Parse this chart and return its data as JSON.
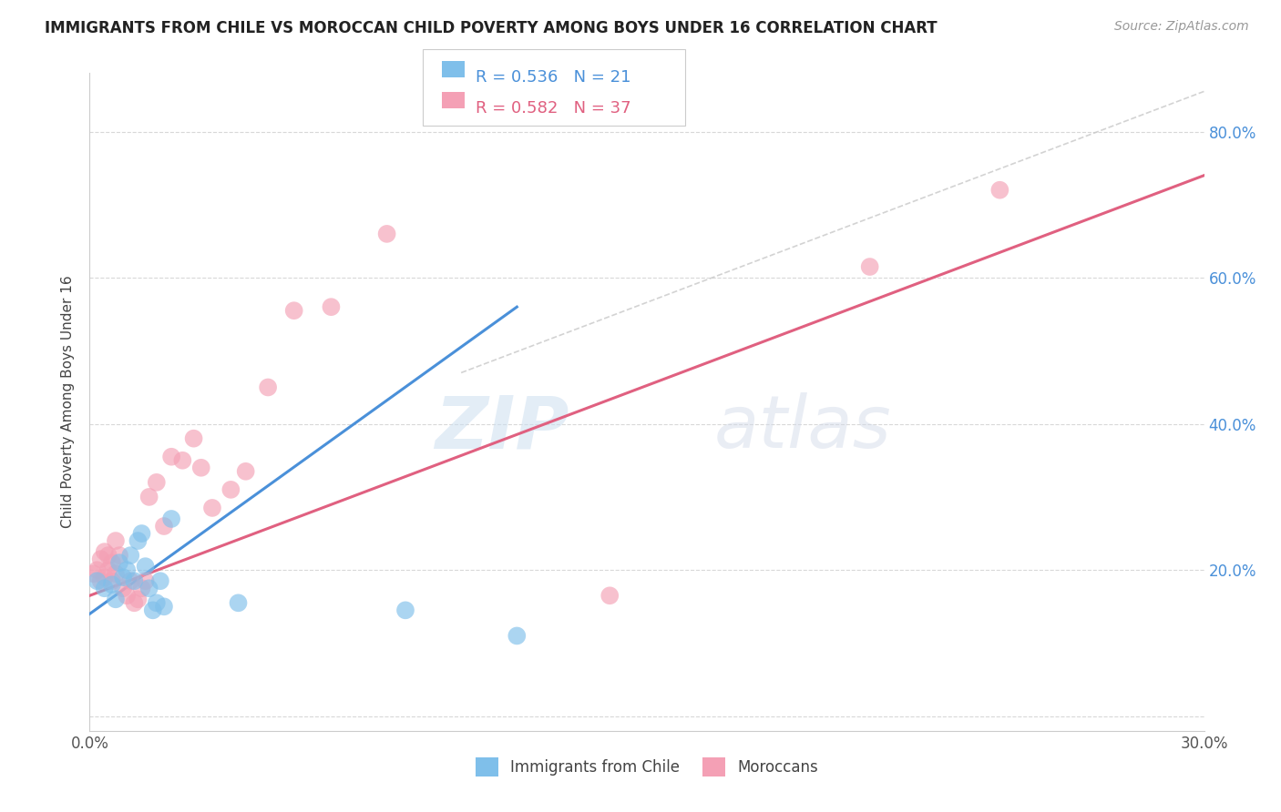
{
  "title": "IMMIGRANTS FROM CHILE VS MOROCCAN CHILD POVERTY AMONG BOYS UNDER 16 CORRELATION CHART",
  "source": "Source: ZipAtlas.com",
  "ylabel": "Child Poverty Among Boys Under 16",
  "xlim": [
    0.0,
    0.3
  ],
  "ylim": [
    -0.02,
    0.88
  ],
  "xticks": [
    0.0,
    0.05,
    0.1,
    0.15,
    0.2,
    0.25,
    0.3
  ],
  "xticklabels": [
    "0.0%",
    "",
    "",
    "",
    "",
    "",
    "30.0%"
  ],
  "yticks_right": [
    0.0,
    0.2,
    0.4,
    0.6,
    0.8
  ],
  "ytick_labels_right": [
    "",
    "20.0%",
    "40.0%",
    "60.0%",
    "80.0%"
  ],
  "legend_R1": "0.536",
  "legend_N1": "21",
  "legend_R2": "0.582",
  "legend_N2": "37",
  "legend_label1": "Immigrants from Chile",
  "legend_label2": "Moroccans",
  "color_blue": "#7fbfea",
  "color_pink": "#f4a0b5",
  "color_blue_line": "#4a90d9",
  "color_pink_line": "#e06080",
  "watermark_zip": "ZIP",
  "watermark_atlas": "atlas",
  "blue_scatter_x": [
    0.002,
    0.004,
    0.006,
    0.007,
    0.008,
    0.009,
    0.01,
    0.011,
    0.012,
    0.013,
    0.014,
    0.015,
    0.016,
    0.017,
    0.018,
    0.019,
    0.02,
    0.022,
    0.04,
    0.085,
    0.115
  ],
  "blue_scatter_y": [
    0.185,
    0.175,
    0.18,
    0.16,
    0.21,
    0.19,
    0.2,
    0.22,
    0.185,
    0.24,
    0.25,
    0.205,
    0.175,
    0.145,
    0.155,
    0.185,
    0.15,
    0.27,
    0.155,
    0.145,
    0.11
  ],
  "pink_scatter_x": [
    0.001,
    0.002,
    0.003,
    0.003,
    0.004,
    0.004,
    0.005,
    0.005,
    0.006,
    0.006,
    0.007,
    0.007,
    0.008,
    0.009,
    0.01,
    0.011,
    0.012,
    0.013,
    0.014,
    0.015,
    0.016,
    0.018,
    0.02,
    0.022,
    0.025,
    0.028,
    0.03,
    0.033,
    0.038,
    0.042,
    0.048,
    0.055,
    0.065,
    0.08,
    0.14,
    0.21,
    0.245
  ],
  "pink_scatter_y": [
    0.195,
    0.2,
    0.185,
    0.215,
    0.19,
    0.225,
    0.2,
    0.22,
    0.185,
    0.21,
    0.195,
    0.24,
    0.22,
    0.175,
    0.165,
    0.185,
    0.155,
    0.16,
    0.175,
    0.185,
    0.3,
    0.32,
    0.26,
    0.355,
    0.35,
    0.38,
    0.34,
    0.285,
    0.31,
    0.335,
    0.45,
    0.555,
    0.56,
    0.66,
    0.165,
    0.615,
    0.72
  ],
  "blue_line_x": [
    0.0,
    0.115
  ],
  "blue_line_y": [
    0.14,
    0.56
  ],
  "pink_line_x": [
    0.0,
    0.3
  ],
  "pink_line_y": [
    0.165,
    0.74
  ],
  "ref_line_x": [
    0.1,
    0.3
  ],
  "ref_line_y": [
    0.47,
    0.855
  ],
  "grid_color": "#d8d8d8",
  "background_color": "#ffffff"
}
